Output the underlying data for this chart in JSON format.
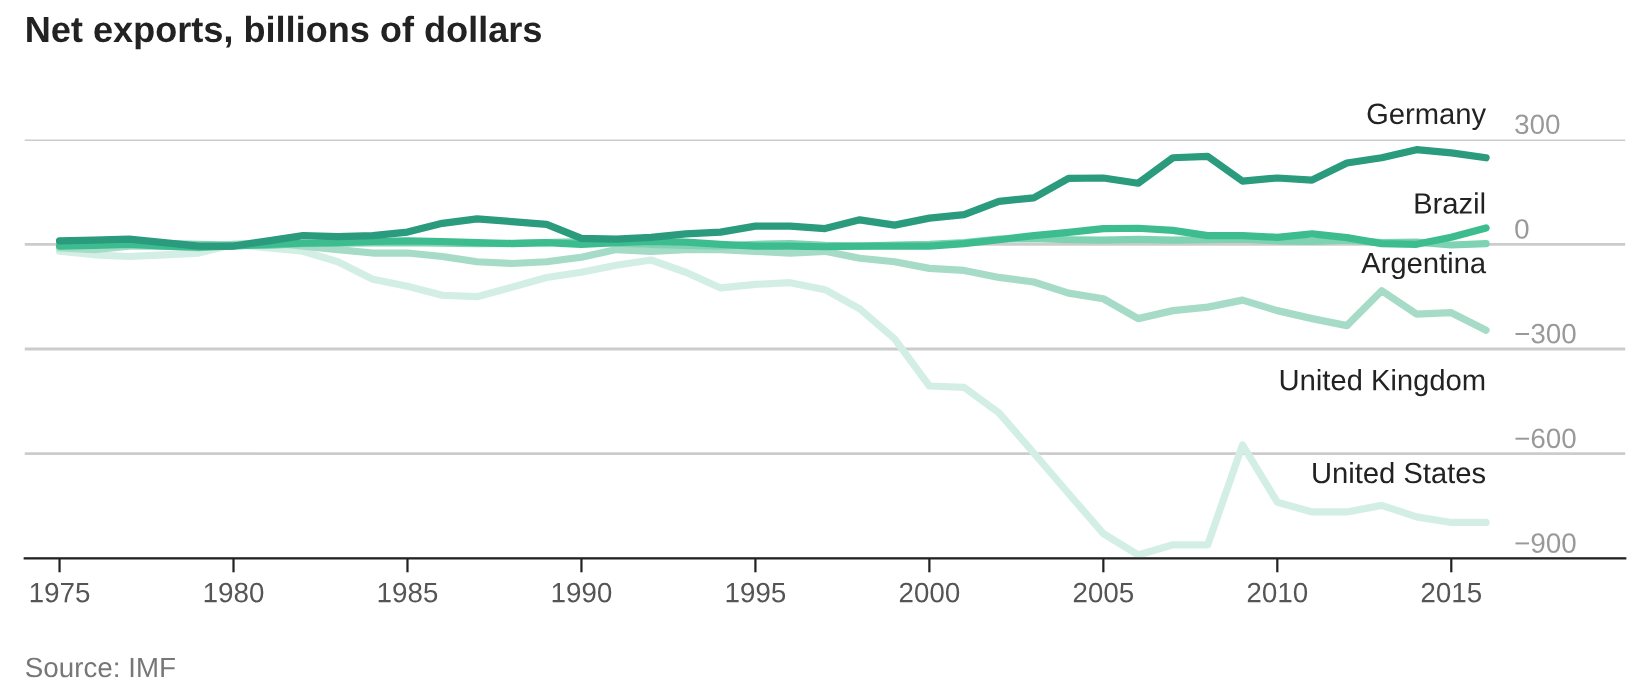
{
  "chart_data": {
    "type": "line",
    "title": "Net exports, billions of dollars",
    "annotations": [
      "Source: IMF"
    ],
    "x": [
      1975,
      1976,
      1977,
      1978,
      1979,
      1980,
      1981,
      1982,
      1983,
      1984,
      1985,
      1986,
      1987,
      1988,
      1989,
      1990,
      1991,
      1992,
      1993,
      1994,
      1995,
      1996,
      1997,
      1998,
      1999,
      2000,
      2001,
      2002,
      2003,
      2004,
      2005,
      2006,
      2007,
      2008,
      2009,
      2010,
      2011,
      2012,
      2013,
      2014,
      2015,
      2016
    ],
    "series": [
      {
        "name": "Germany",
        "color": "#2a9b7c",
        "values": [
          10,
          12,
          15,
          5,
          -5,
          -5,
          10,
          25,
          22,
          25,
          35,
          60,
          73,
          65,
          57,
          17,
          15,
          20,
          30,
          35,
          52,
          52,
          45,
          70,
          55,
          75,
          85,
          123,
          133,
          189,
          190,
          175,
          248,
          252,
          181,
          190,
          184,
          233,
          248,
          271,
          262,
          248
        ]
      },
      {
        "name": "Brazil",
        "color": "#3dbd8f",
        "values": [
          -5,
          -3,
          0,
          -5,
          -8,
          -5,
          0,
          3,
          5,
          8,
          10,
          8,
          5,
          2,
          5,
          0,
          5,
          8,
          6,
          0,
          -5,
          -5,
          -7,
          -5,
          -5,
          -5,
          2,
          13,
          25,
          34,
          45,
          46,
          40,
          25,
          25,
          20,
          30,
          19,
          2,
          0,
          20,
          47
        ]
      },
      {
        "name": "Argentina",
        "color": "#7fd3b3",
        "values": [
          0,
          0,
          2,
          2,
          0,
          -2,
          -3,
          2,
          3,
          4,
          5,
          3,
          2,
          3,
          5,
          8,
          3,
          0,
          -3,
          -5,
          0,
          2,
          -3,
          -5,
          -2,
          0,
          5,
          15,
          16,
          13,
          12,
          14,
          12,
          13,
          15,
          10,
          8,
          12,
          5,
          6,
          -2,
          2
        ]
      },
      {
        "name": "United Kingdom",
        "color": "#a6dcc7",
        "values": [
          -10,
          -15,
          -5,
          -5,
          -10,
          0,
          5,
          -5,
          -15,
          -25,
          -25,
          -35,
          -50,
          -55,
          -50,
          -37,
          -15,
          -20,
          -15,
          -15,
          -20,
          -25,
          -20,
          -40,
          -50,
          -69,
          -75,
          -95,
          -108,
          -140,
          -156,
          -213,
          -190,
          -180,
          -160,
          -190,
          -213,
          -233,
          -133,
          -200,
          -196,
          -246
        ]
      },
      {
        "name": "United States",
        "color": "#d3efe5",
        "values": [
          -20,
          -30,
          -35,
          -30,
          -25,
          0,
          -10,
          -20,
          -50,
          -100,
          -120,
          -146,
          -150,
          -123,
          -95,
          -80,
          -60,
          -45,
          -80,
          -125,
          -115,
          -110,
          -130,
          -185,
          -271,
          -406,
          -410,
          -483,
          -598,
          -714,
          -829,
          -890,
          -861,
          -861,
          -575,
          -739,
          -767,
          -767,
          -748,
          -781,
          -797,
          -797
        ]
      }
    ],
    "xlim": [
      1974,
      2020
    ],
    "xticks": [
      1975,
      1980,
      1985,
      1990,
      1995,
      2000,
      2005,
      2010,
      2015
    ],
    "ylim": [
      -900,
      300
    ],
    "yticks": [
      {
        "value": -900,
        "label": "−900"
      },
      {
        "value": -600,
        "label": "−600"
      },
      {
        "value": -300,
        "label": "−300"
      },
      0,
      300
    ],
    "grid": "y",
    "legend": false,
    "marker": "none",
    "line_style": "solid"
  }
}
